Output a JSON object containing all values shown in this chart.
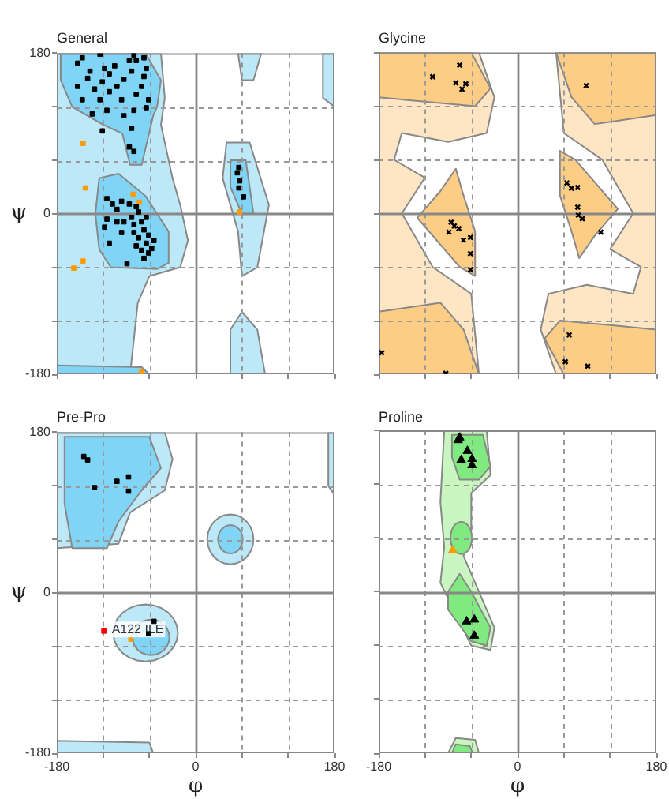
{
  "chart_data": [
    {
      "type": "scatter",
      "title": "General",
      "ylabel": "ψ",
      "xlim": [
        -180,
        180
      ],
      "ylim": [
        -180,
        180
      ],
      "xticks": [
        -180,
        {
          "value": -120,
          "label": null
        },
        {
          "value": -60,
          "label": null
        },
        0,
        {
          "value": 60,
          "label": null
        },
        {
          "value": 120,
          "label": null
        },
        180
      ],
      "yticks": [
        -180,
        {
          "value": -120,
          "label": null
        },
        {
          "value": -60,
          "label": null
        },
        0,
        {
          "value": 60,
          "label": null
        },
        {
          "value": 120,
          "label": null
        },
        180
      ],
      "grid": true,
      "tick_labels": "y",
      "series": [
        {
          "color": "#000000",
          "marker": "square",
          "x": [
            -147,
            -124,
            -153,
            -137,
            -118,
            -105,
            -80,
            -77,
            -64,
            -67,
            -83,
            -93,
            -121,
            -147,
            -131,
            -112,
            -96,
            -77,
            -61,
            -134,
            -115,
            -93,
            -80,
            -83,
            -121,
            -86,
            -80,
            -153,
            -102,
            -70,
            -140,
            -67,
            -86,
            -112,
            -124,
            -64,
            -115,
            -108,
            -96,
            -102,
            -86,
            -77,
            -115,
            -118,
            -102,
            -93,
            -83,
            -80,
            -70,
            -67,
            -61,
            -74,
            -64,
            -57,
            -70,
            -77,
            -89,
            -112,
            -61,
            -67,
            -54,
            -80,
            -96,
            -74,
            -64,
            56,
            54,
            57,
            62,
            56
          ],
          "values": [
            175,
            179,
            169,
            160,
            163,
            166,
            178,
            172,
            163,
            154,
            160,
            151,
            148,
            128,
            140,
            137,
            128,
            134,
            128,
            112,
            116,
            110,
            116,
            96,
            93,
            75,
            70,
            143,
            143,
            143,
            152,
            175,
            172,
            157,
            128,
            119,
            17,
            11,
            14,
            5,
            11,
            8,
            -6,
            -15,
            -9,
            -9,
            -4,
            -12,
            -9,
            -18,
            -24,
            -27,
            -33,
            -39,
            -41,
            -36,
            -56,
            -33,
            -44,
            -50,
            -30,
            -21,
            -21,
            2,
            -4,
            52,
            46,
            37,
            19,
            29
          ]
        },
        {
          "color": "#ff9900",
          "marker": "square",
          "x": [
            -146,
            -143,
            -81,
            -73,
            -146,
            -158,
            -70,
            57
          ],
          "values": [
            79,
            29,
            22,
            13,
            -53,
            -61,
            -177,
            2
          ]
        }
      ]
    },
    {
      "type": "scatter",
      "title": "Glycine",
      "xlim": [
        -180,
        180
      ],
      "ylim": [
        -180,
        180
      ],
      "xticks": [
        -180,
        {
          "value": -120,
          "label": null
        },
        {
          "value": -60,
          "label": null
        },
        0,
        {
          "value": 60,
          "label": null
        },
        {
          "value": 120,
          "label": null
        },
        180
      ],
      "yticks": [
        -180,
        {
          "value": -120,
          "label": null
        },
        {
          "value": -60,
          "label": null
        },
        0,
        {
          "value": 60,
          "label": null
        },
        {
          "value": 120,
          "label": null
        },
        180
      ],
      "grid": true,
      "tick_labels": false,
      "series": [
        {
          "color": "#000000",
          "marker": "cross",
          "x": [
            -110,
            -75,
            -80,
            -72,
            -67,
            89,
            -86,
            -82,
            -76,
            -89,
            -70,
            -61,
            -61,
            -61,
            64,
            70,
            78,
            78,
            79,
            84,
            108,
            67,
            62,
            91,
            -176,
            -93
          ],
          "values": [
            153,
            166,
            146,
            139,
            145,
            143,
            -10,
            -14,
            -17,
            -21,
            -30,
            -27,
            -45,
            -63,
            34,
            28,
            29,
            7,
            -2,
            -6,
            -21,
            -136,
            -166,
            -171,
            -156,
            -179
          ]
        }
      ]
    },
    {
      "type": "scatter",
      "title": "Pre-Pro",
      "xlabel": "φ",
      "ylabel": "ψ",
      "xlim": [
        -180,
        180
      ],
      "ylim": [
        -180,
        180
      ],
      "xticks": [
        -180,
        {
          "value": -120,
          "label": null
        },
        {
          "value": -60,
          "label": null
        },
        0,
        {
          "value": 60,
          "label": null
        },
        {
          "value": 120,
          "label": null
        },
        180
      ],
      "yticks": [
        -180,
        {
          "value": -120,
          "label": null
        },
        {
          "value": -60,
          "label": null
        },
        0,
        {
          "value": 60,
          "label": null
        },
        {
          "value": 120,
          "label": null
        },
        180
      ],
      "grid": true,
      "annotations": [
        {
          "text": "A122 ILE",
          "x": -119,
          "y": -43
        }
      ],
      "series": [
        {
          "color": "#000000",
          "marker": "square",
          "x": [
            -145,
            -140,
            -131,
            -102,
            -87,
            -87,
            -54,
            -61
          ],
          "values": [
            153,
            149,
            118,
            125,
            130,
            114,
            -32,
            -46
          ]
        },
        {
          "color": "#ff9900",
          "marker": "square",
          "x": [
            -84
          ],
          "values": [
            -52
          ]
        },
        {
          "color": "#ff0000",
          "marker": "square",
          "x": [
            -119
          ],
          "values": [
            -43
          ]
        }
      ]
    },
    {
      "type": "scatter",
      "title": "Proline",
      "xlabel": "φ",
      "xlim": [
        -180,
        180
      ],
      "ylim": [
        -180,
        180
      ],
      "xticks": [
        -180,
        {
          "value": -120,
          "label": null
        },
        {
          "value": -60,
          "label": null
        },
        0,
        {
          "value": 60,
          "label": null
        },
        {
          "value": 120,
          "label": null
        },
        180
      ],
      "yticks": [
        -180,
        {
          "value": -120,
          "label": null
        },
        {
          "value": -60,
          "label": null
        },
        0,
        {
          "value": 60,
          "label": null
        },
        {
          "value": 120,
          "label": null
        },
        180
      ],
      "grid": true,
      "tick_labels": "x",
      "series": [
        {
          "color": "#000000",
          "marker": "triangle",
          "x": [
            -75,
            -77,
            -65,
            -73,
            -59,
            -59,
            -66,
            -56,
            -56
          ],
          "values": [
            172,
            169,
            157,
            147,
            148,
            141,
            -33,
            -31,
            -49
          ]
        },
        {
          "color": "#ff9900",
          "marker": "triangle",
          "x": [
            -84
          ],
          "values": [
            46
          ]
        }
      ]
    }
  ]
}
